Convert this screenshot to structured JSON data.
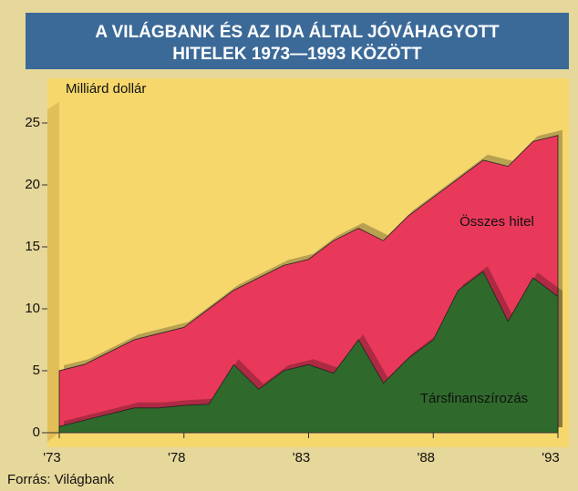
{
  "chart_data": {
    "type": "area",
    "title": "A VILÁGBANK ÉS AZ IDA ÁLTAL JÓVÁHAGYOTT",
    "subtitle": "HITELEK 1973—1993 KÖZÖTT",
    "ylabel": "Milliárd dollár",
    "source": "Forrás: Világbank",
    "x": [
      1973,
      1974,
      1975,
      1976,
      1977,
      1978,
      1979,
      1980,
      1981,
      1982,
      1983,
      1984,
      1985,
      1986,
      1987,
      1988,
      1989,
      1990,
      1991,
      1992,
      1993
    ],
    "series": [
      {
        "name": "Összes hitel",
        "color": "#e8395a",
        "values": [
          5,
          5.5,
          6.5,
          7.5,
          8,
          8.5,
          10,
          11.5,
          12.5,
          13.5,
          14,
          15.5,
          16.5,
          15.5,
          17.5,
          19,
          20.5,
          22,
          21.5,
          23.5,
          24
        ]
      },
      {
        "name": "Társfinanszírozás",
        "color": "#2f6a2c",
        "values": [
          0.5,
          1,
          1.5,
          2,
          2,
          2.2,
          2.3,
          5.5,
          3.5,
          5,
          5.5,
          4.8,
          7.5,
          4,
          6,
          7.5,
          11.5,
          13,
          9,
          12.5,
          11
        ]
      }
    ],
    "xlim": [
      1973,
      1993
    ],
    "xticks": [
      {
        "value": 1973,
        "label": "'73"
      },
      {
        "value": 1978,
        "label": "'78"
      },
      {
        "value": 1983,
        "label": "'83"
      },
      {
        "value": 1988,
        "label": "'88"
      },
      {
        "value": 1993,
        "label": "'93"
      }
    ],
    "ylim": [
      0,
      25
    ],
    "yticks": [
      0,
      5,
      10,
      15,
      20,
      25
    ]
  }
}
